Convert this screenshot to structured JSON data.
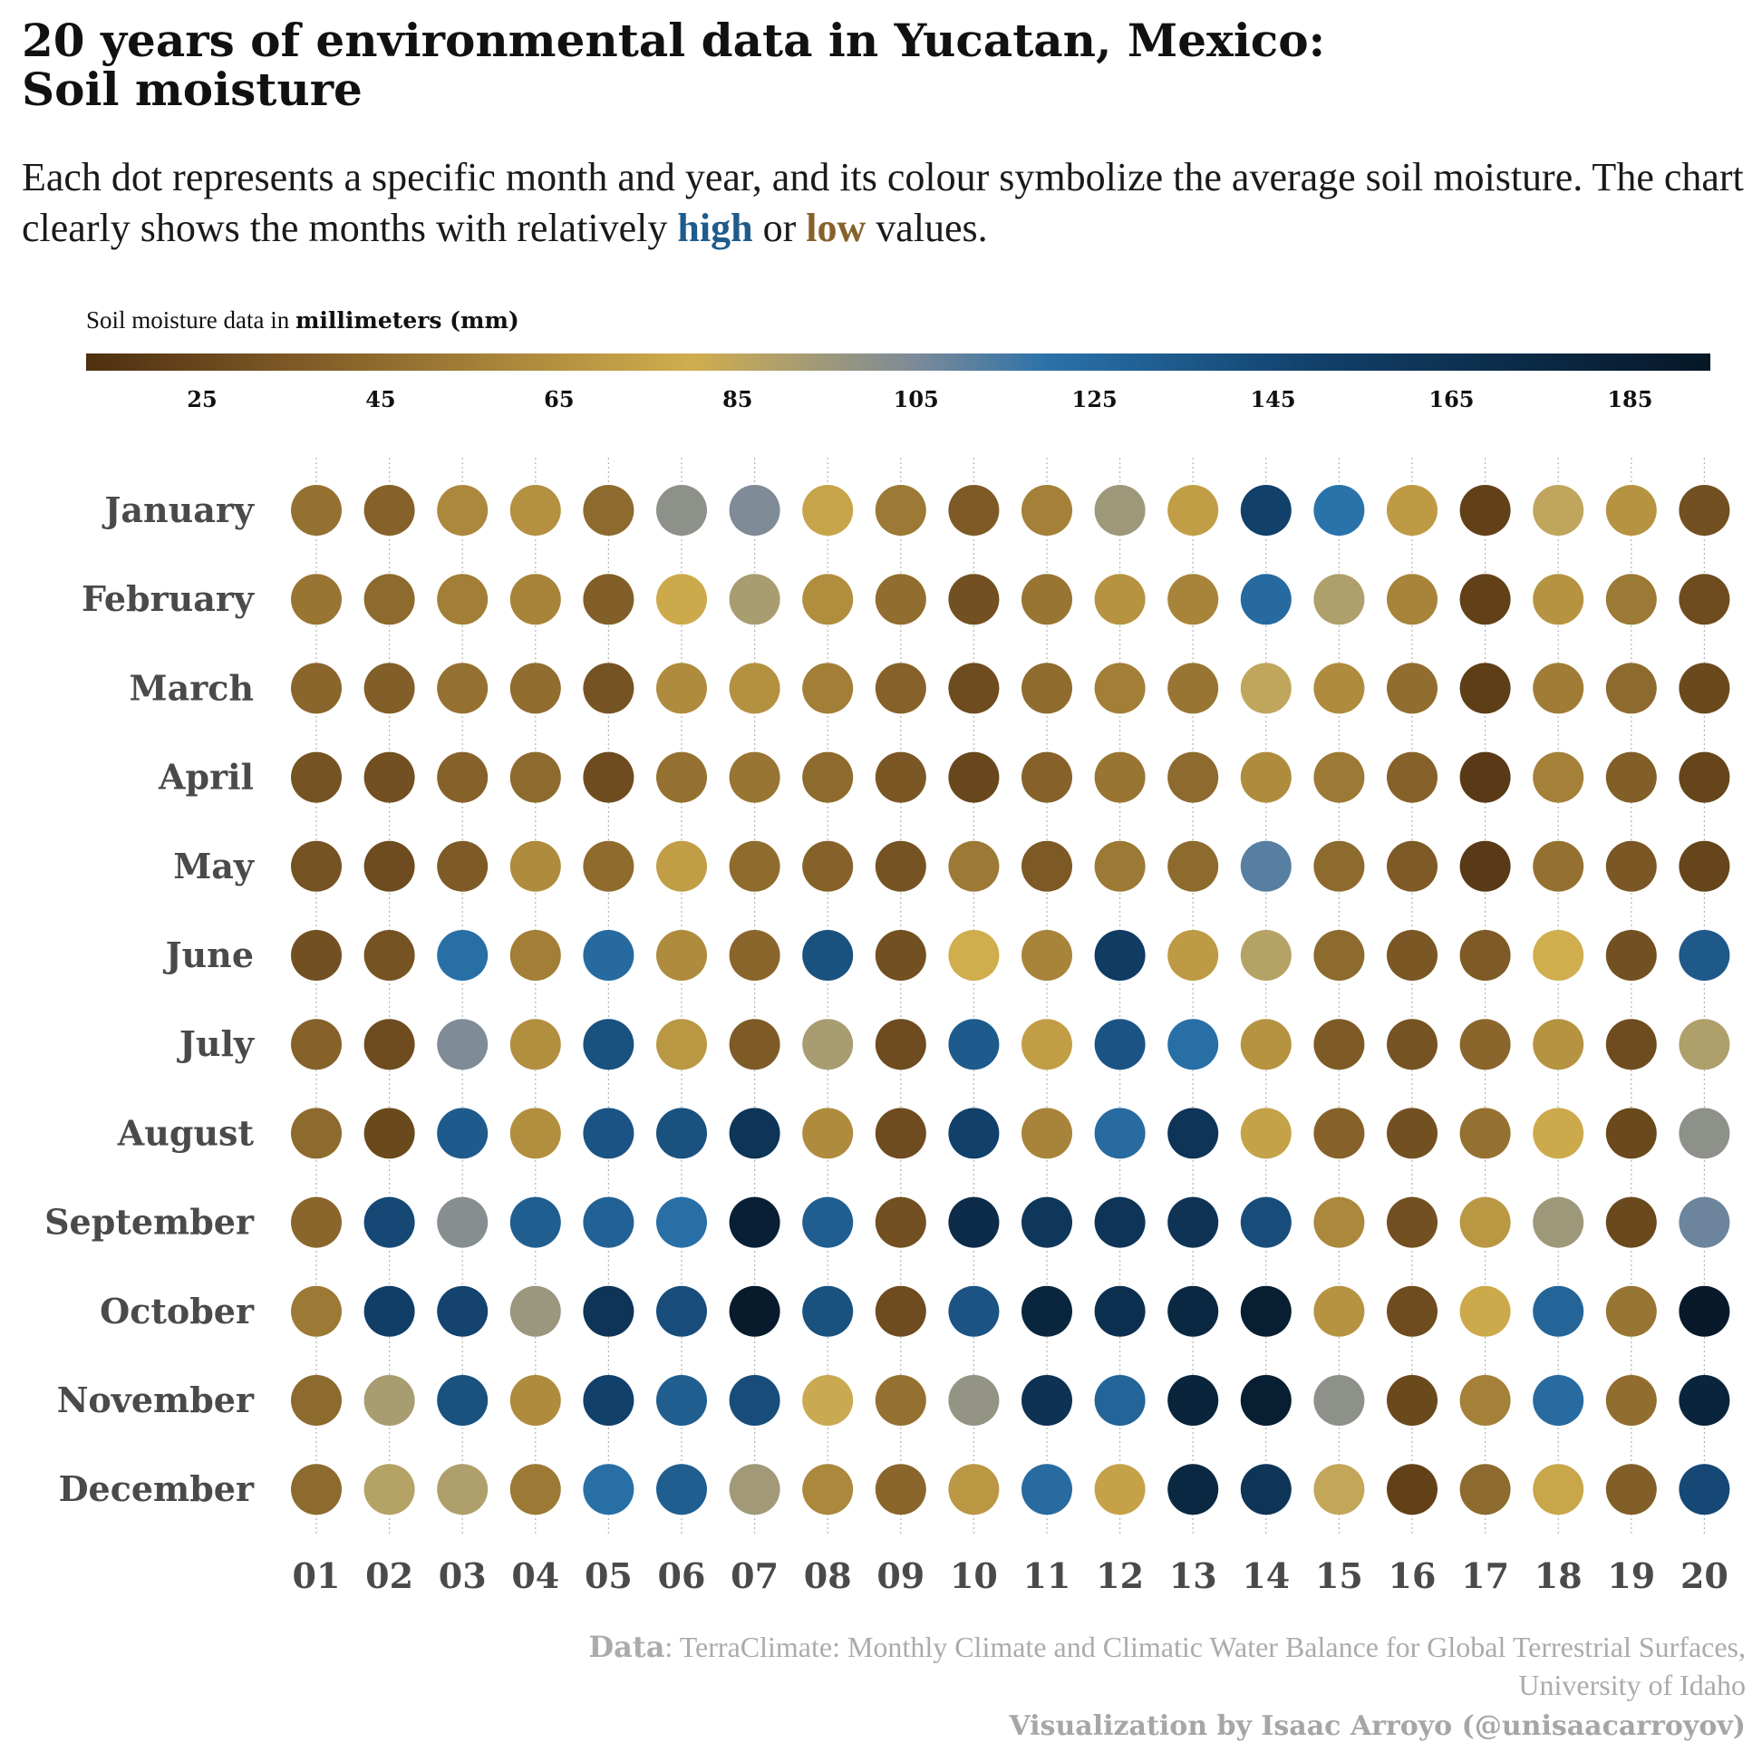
{
  "header": {
    "title_line1": "20 years of environmental data in Yucatan, Mexico:",
    "title_line2": "Soil moisture",
    "subtitle_part1": "Each dot represents a specific month and year, and its colour symbolize the average soil moisture. The chart clearly shows the months with relatively ",
    "subtitle_high": "high",
    "subtitle_or": " or ",
    "subtitle_low": "low",
    "subtitle_end": " values."
  },
  "legend": {
    "title_prefix": "Soil moisture data in ",
    "title_unit": "millimeters (mm)",
    "ticks": [
      "25",
      "45",
      "65",
      "85",
      "105",
      "125",
      "145",
      "165",
      "185"
    ]
  },
  "footer": {
    "data_label": "Data",
    "data_source": ": TerraClimate: Monthly Climate and Climatic Water Balance for Global Terrestrial Surfaces,",
    "data_source_line2": "University of Idaho",
    "credit": "Visualization by Isaac Arroyo (@unisaacarroyov)"
  },
  "colors": {
    "scale_stops": [
      {
        "value": 12,
        "color": "#4e2f10"
      },
      {
        "value": 40,
        "color": "#86622a"
      },
      {
        "value": 80,
        "color": "#d0ad4d"
      },
      {
        "value": 105,
        "color": "#7c8a99"
      },
      {
        "value": 120,
        "color": "#2a72aa"
      },
      {
        "value": 150,
        "color": "#11406a"
      },
      {
        "value": 194,
        "color": "#061727"
      }
    ],
    "highlight_high": "#1f5c8c",
    "highlight_low": "#86622a"
  },
  "chart_data": {
    "type": "heatmap",
    "title": "20 years of environmental data in Yucatan, Mexico: Soil moisture",
    "x_labels": [
      "01",
      "02",
      "03",
      "04",
      "05",
      "06",
      "07",
      "08",
      "09",
      "10",
      "11",
      "12",
      "13",
      "14",
      "15",
      "16",
      "17",
      "18",
      "19",
      "20"
    ],
    "y_labels": [
      "January",
      "February",
      "March",
      "April",
      "May",
      "June",
      "July",
      "August",
      "September",
      "October",
      "November",
      "December"
    ],
    "color_scale": {
      "min": 12,
      "max": 194,
      "unit": "mm"
    },
    "values": [
      [
        48,
        40,
        60,
        65,
        44,
        100,
        104,
        75,
        52,
        36,
        56,
        95,
        72,
        150,
        120,
        70,
        22,
        85,
        66,
        30
      ],
      [
        50,
        44,
        55,
        58,
        38,
        78,
        92,
        63,
        46,
        30,
        50,
        66,
        58,
        125,
        90,
        58,
        22,
        66,
        52,
        28
      ],
      [
        42,
        38,
        48,
        46,
        32,
        62,
        65,
        55,
        40,
        28,
        45,
        55,
        50,
        85,
        62,
        46,
        20,
        54,
        44,
        26
      ],
      [
        32,
        30,
        40,
        44,
        28,
        48,
        50,
        44,
        34,
        25,
        40,
        50,
        44,
        62,
        52,
        40,
        18,
        56,
        38,
        24
      ],
      [
        32,
        28,
        36,
        62,
        45,
        72,
        45,
        40,
        32,
        52,
        35,
        52,
        44,
        112,
        44,
        36,
        18,
        48,
        34,
        24
      ],
      [
        30,
        32,
        122,
        55,
        125,
        62,
        42,
        140,
        30,
        80,
        58,
        155,
        70,
        88,
        44,
        34,
        36,
        80,
        30,
        135
      ],
      [
        40,
        28,
        104,
        64,
        140,
        68,
        36,
        92,
        28,
        134,
        72,
        138,
        122,
        66,
        36,
        32,
        42,
        66,
        28,
        90
      ],
      [
        44,
        26,
        134,
        64,
        138,
        140,
        162,
        62,
        28,
        150,
        58,
        124,
        162,
        74,
        40,
        30,
        48,
        78,
        26,
        100
      ],
      [
        42,
        145,
        102,
        132,
        130,
        122,
        185,
        132,
        30,
        172,
        160,
        162,
        164,
        142,
        60,
        30,
        68,
        95,
        26,
        108
      ],
      [
        52,
        152,
        148,
        96,
        162,
        142,
        190,
        140,
        28,
        138,
        178,
        168,
        176,
        186,
        66,
        28,
        78,
        128,
        50,
        192
      ],
      [
        44,
        92,
        140,
        62,
        150,
        132,
        142,
        82,
        48,
        98,
        165,
        128,
        180,
        186,
        100,
        26,
        56,
        124,
        46,
        180
      ],
      [
        44,
        88,
        90,
        52,
        122,
        132,
        94,
        60,
        42,
        68,
        124,
        74,
        176,
        162,
        84,
        22,
        44,
        76,
        38,
        145
      ]
    ]
  }
}
